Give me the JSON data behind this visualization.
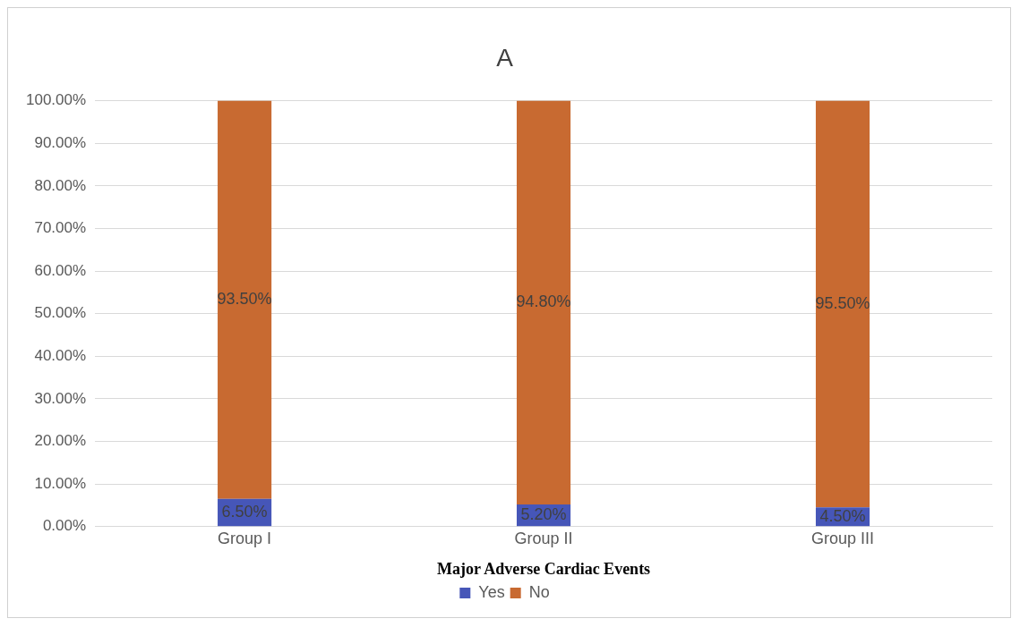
{
  "chart_data": {
    "type": "bar",
    "title": "A",
    "xlabel": "Major Adverse Cardiac Events",
    "categories": [
      "Group I",
      "Group II",
      "Group III"
    ],
    "stacked": true,
    "series": [
      {
        "name": "Yes",
        "color": "#4656b8",
        "values": [
          6.5,
          5.2,
          4.5
        ],
        "value_labels": [
          "6.50%",
          "5.20%",
          "4.50%"
        ]
      },
      {
        "name": "No",
        "color": "#c86a31",
        "values": [
          93.5,
          94.8,
          95.5
        ],
        "value_labels": [
          "93.50%",
          "94.80%",
          "95.50%"
        ]
      }
    ],
    "ylim": [
      0,
      100
    ],
    "yticks": [
      {
        "value": 0,
        "label": "0.00%"
      },
      {
        "value": 10,
        "label": "10.00%"
      },
      {
        "value": 20,
        "label": "20.00%"
      },
      {
        "value": 30,
        "label": "30.00%"
      },
      {
        "value": 40,
        "label": "40.00%"
      },
      {
        "value": 50,
        "label": "50.00%"
      },
      {
        "value": 60,
        "label": "60.00%"
      },
      {
        "value": 70,
        "label": "70.00%"
      },
      {
        "value": 80,
        "label": "80.00%"
      },
      {
        "value": 90,
        "label": "90.00%"
      },
      {
        "value": 100,
        "label": "100.00%"
      }
    ],
    "grid": "y",
    "legend": "bottom"
  }
}
